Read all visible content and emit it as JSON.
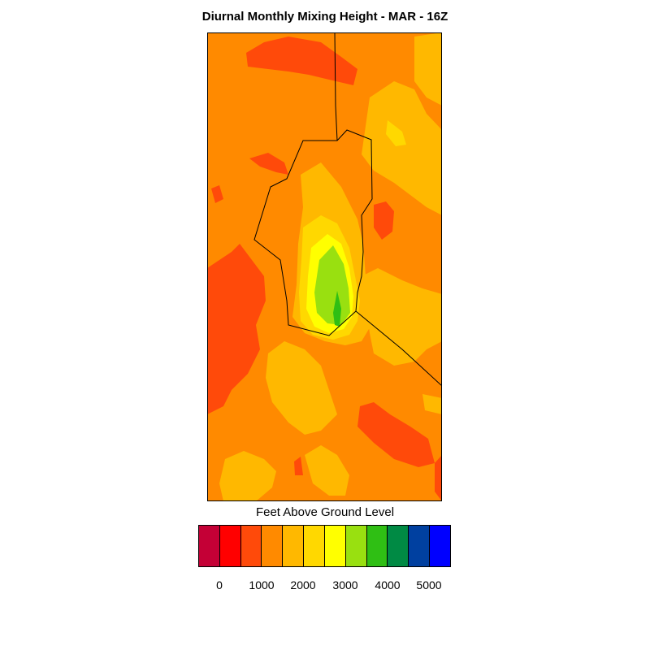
{
  "title": "Diurnal Monthly Mixing Height - MAR - 16Z",
  "colorbar": {
    "title": "Feet Above Ground Level",
    "colors": [
      "#c40036",
      "#ff0000",
      "#ff4a0a",
      "#ff8a00",
      "#ffb800",
      "#ffd800",
      "#ffff00",
      "#99e010",
      "#2fbf14",
      "#008a44",
      "#0040a0",
      "#0000ff"
    ],
    "tick_labels": [
      "0",
      "1000",
      "2000",
      "3000",
      "4000",
      "5000"
    ]
  },
  "chart_data": {
    "type": "heatmap",
    "title": "Diurnal Monthly Mixing Height - MAR - 16Z",
    "units": "Feet Above Ground Level",
    "levels": [
      0,
      1000,
      2000,
      3000,
      4000,
      5000
    ],
    "dominant_range_ft": [
      1000,
      2000
    ],
    "max_level_band_ft": [
      3500,
      4000
    ]
  }
}
